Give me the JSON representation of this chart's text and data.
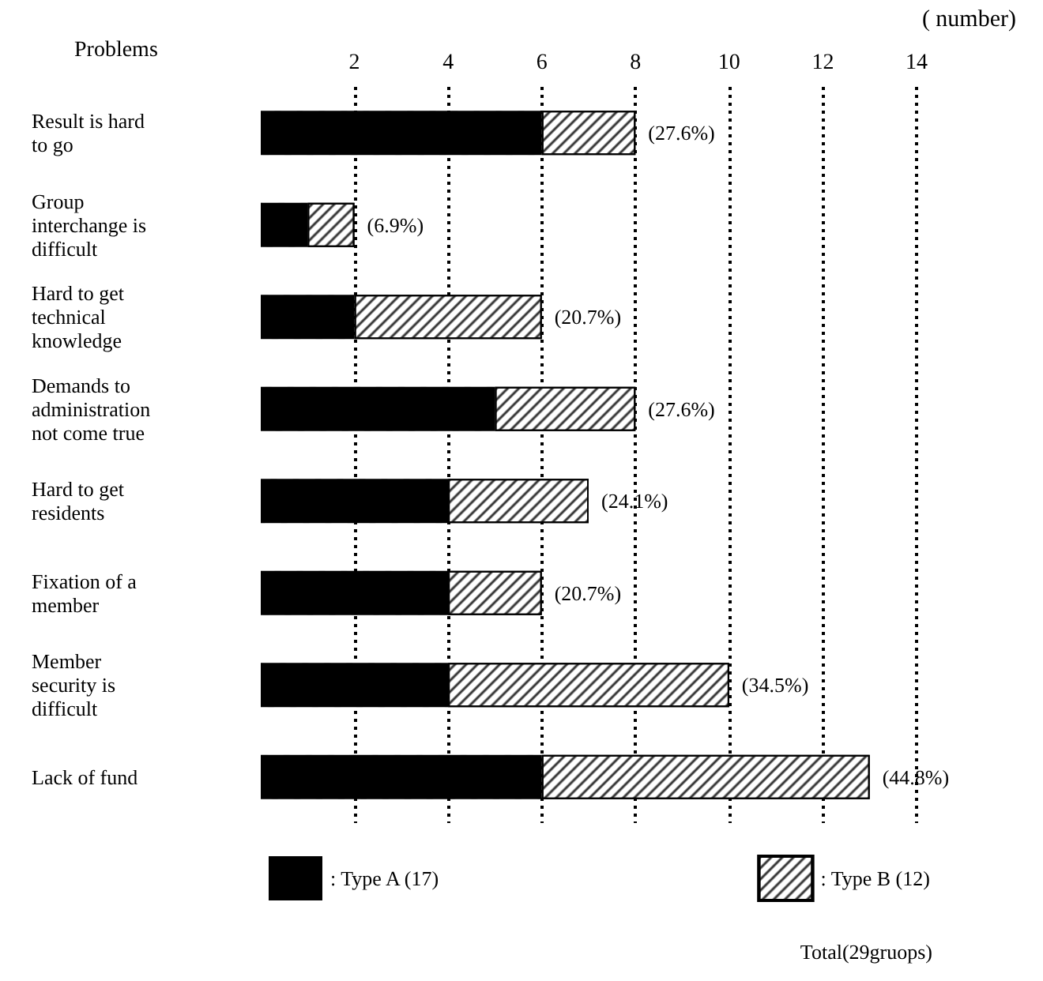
{
  "chart_data": {
    "type": "bar",
    "orientation": "horizontal",
    "stacked": true,
    "ylabel": "Problems",
    "xlabel": "( number)",
    "categories": [
      "Result is hard\nto go",
      "Group\ninterchange is\ndifficult",
      "Hard to get\ntechnical\nknowledge",
      "Demands to\nadministration\nnot come true",
      "Hard to get\nresidents",
      "Fixation of a\nmember",
      "Member\nsecurity is\ndifficult",
      "Lack of fund"
    ],
    "series": [
      {
        "name": ": Type A (17)",
        "color": "#000000",
        "values": [
          6,
          1,
          2,
          5,
          4,
          4,
          4,
          6
        ]
      },
      {
        "name": ": Type B (12)",
        "color": "#ffffff",
        "values": [
          2,
          1,
          4,
          3,
          3,
          2,
          6,
          7
        ]
      }
    ],
    "xlim": [
      0,
      14
    ],
    "xticks": [
      2,
      4,
      6,
      8,
      10,
      12,
      14
    ],
    "grid": "x",
    "legend": "bottom",
    "annotations": [
      "Total(29gruops)",
      {
        "text": "(27.6%)",
        "x": 8,
        "y": "Result is hard\nto go"
      },
      {
        "text": "(6.9%)",
        "x": 2,
        "y": "Group\ninterchange is\ndifficult"
      },
      {
        "text": "(20.7%)",
        "x": 6,
        "y": "Hard to get\ntechnical\nknowledge"
      },
      {
        "text": "(27.6%)",
        "x": 8,
        "y": "Demands to\nadministration\nnot come true"
      },
      {
        "text": "(24.1%)",
        "x": 7,
        "y": "Hard to get\nresidents"
      },
      {
        "text": "(20.7%)",
        "x": 6,
        "y": "Fixation of a\nmember"
      },
      {
        "text": "(34.5%)",
        "x": 10,
        "y": "Member\nsecurity is\ndifficult"
      },
      {
        "text": "(44.8%)",
        "x": 13,
        "y": "Lack of fund"
      }
    ]
  }
}
